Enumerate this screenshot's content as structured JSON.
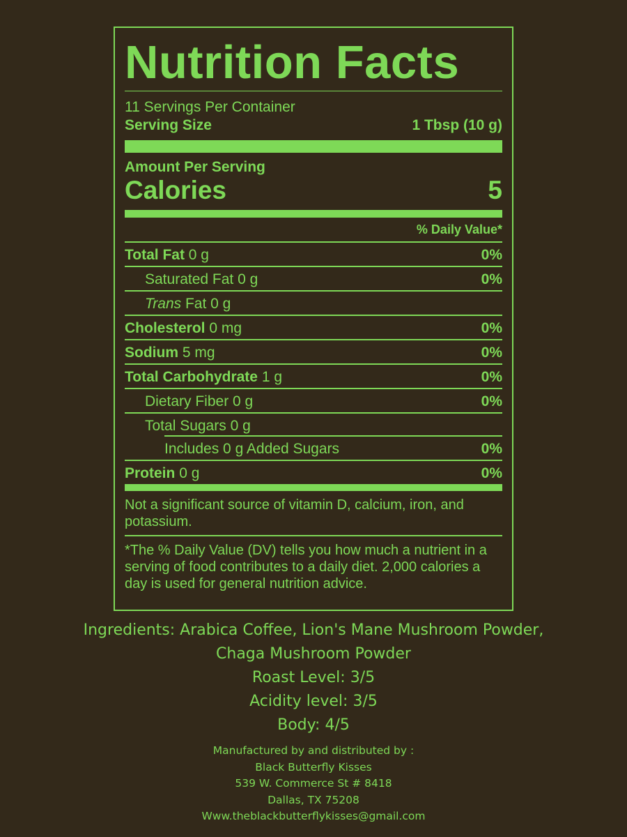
{
  "label": {
    "title": "Nutrition Facts",
    "servings_per_container": "11 Servings Per Container",
    "serving_size_label": "Serving Size",
    "serving_size_value": "1 Tbsp (10 g)",
    "amount_per_serving": "Amount Per Serving",
    "calories_label": "Calories",
    "calories_value": "5",
    "daily_value_header": "% Daily Value*",
    "nutrients": [
      {
        "name": "Total Fat",
        "amount": "0 g",
        "dv": "0%"
      },
      {
        "name": "Saturated Fat",
        "amount": "0 g",
        "dv": "0%"
      },
      {
        "name": "Trans",
        "amount": "Fat 0 g",
        "dv": ""
      },
      {
        "name": "Cholesterol",
        "amount": "0 mg",
        "dv": "0%"
      },
      {
        "name": "Sodium",
        "amount": "5 mg",
        "dv": "0%"
      },
      {
        "name": "Total Carbohydrate",
        "amount": "1 g",
        "dv": "0%"
      },
      {
        "name": "Dietary Fiber",
        "amount": "0 g",
        "dv": "0%"
      },
      {
        "name": "Total Sugars",
        "amount": "0 g",
        "dv": ""
      },
      {
        "name": "Includes 0 g Added Sugars",
        "amount": "",
        "dv": "0%"
      },
      {
        "name": "Protein",
        "amount": "0 g",
        "dv": "0%"
      }
    ],
    "vitamin_note": "Not a significant source of vitamin D, calcium, iron, and potassium.",
    "footnote": "*The % Daily Value (DV) tells you how much a nutrient in a serving of food contributes to a daily diet. 2,000 calories a day is used for general nutrition advice."
  },
  "info": {
    "ingredients_line1": "Ingredients: Arabica Coffee, Lion's Mane Mushroom Powder,",
    "ingredients_line2": "Chaga Mushroom Powder",
    "roast": "Roast Level: 3/5",
    "acidity": "Acidity level: 3/5",
    "body": "Body: 4/5"
  },
  "manufacturer": {
    "intro": "Manufactured by and distributed by :",
    "name": "Black Butterfly Kisses",
    "street": "539 W. Commerce St # 8418",
    "city": "Dallas, TX 75208",
    "contact": "Www.theblackbutterflykisses@gmail.com"
  },
  "colors": {
    "background": "#33291a",
    "accent": "#7ed957"
  }
}
